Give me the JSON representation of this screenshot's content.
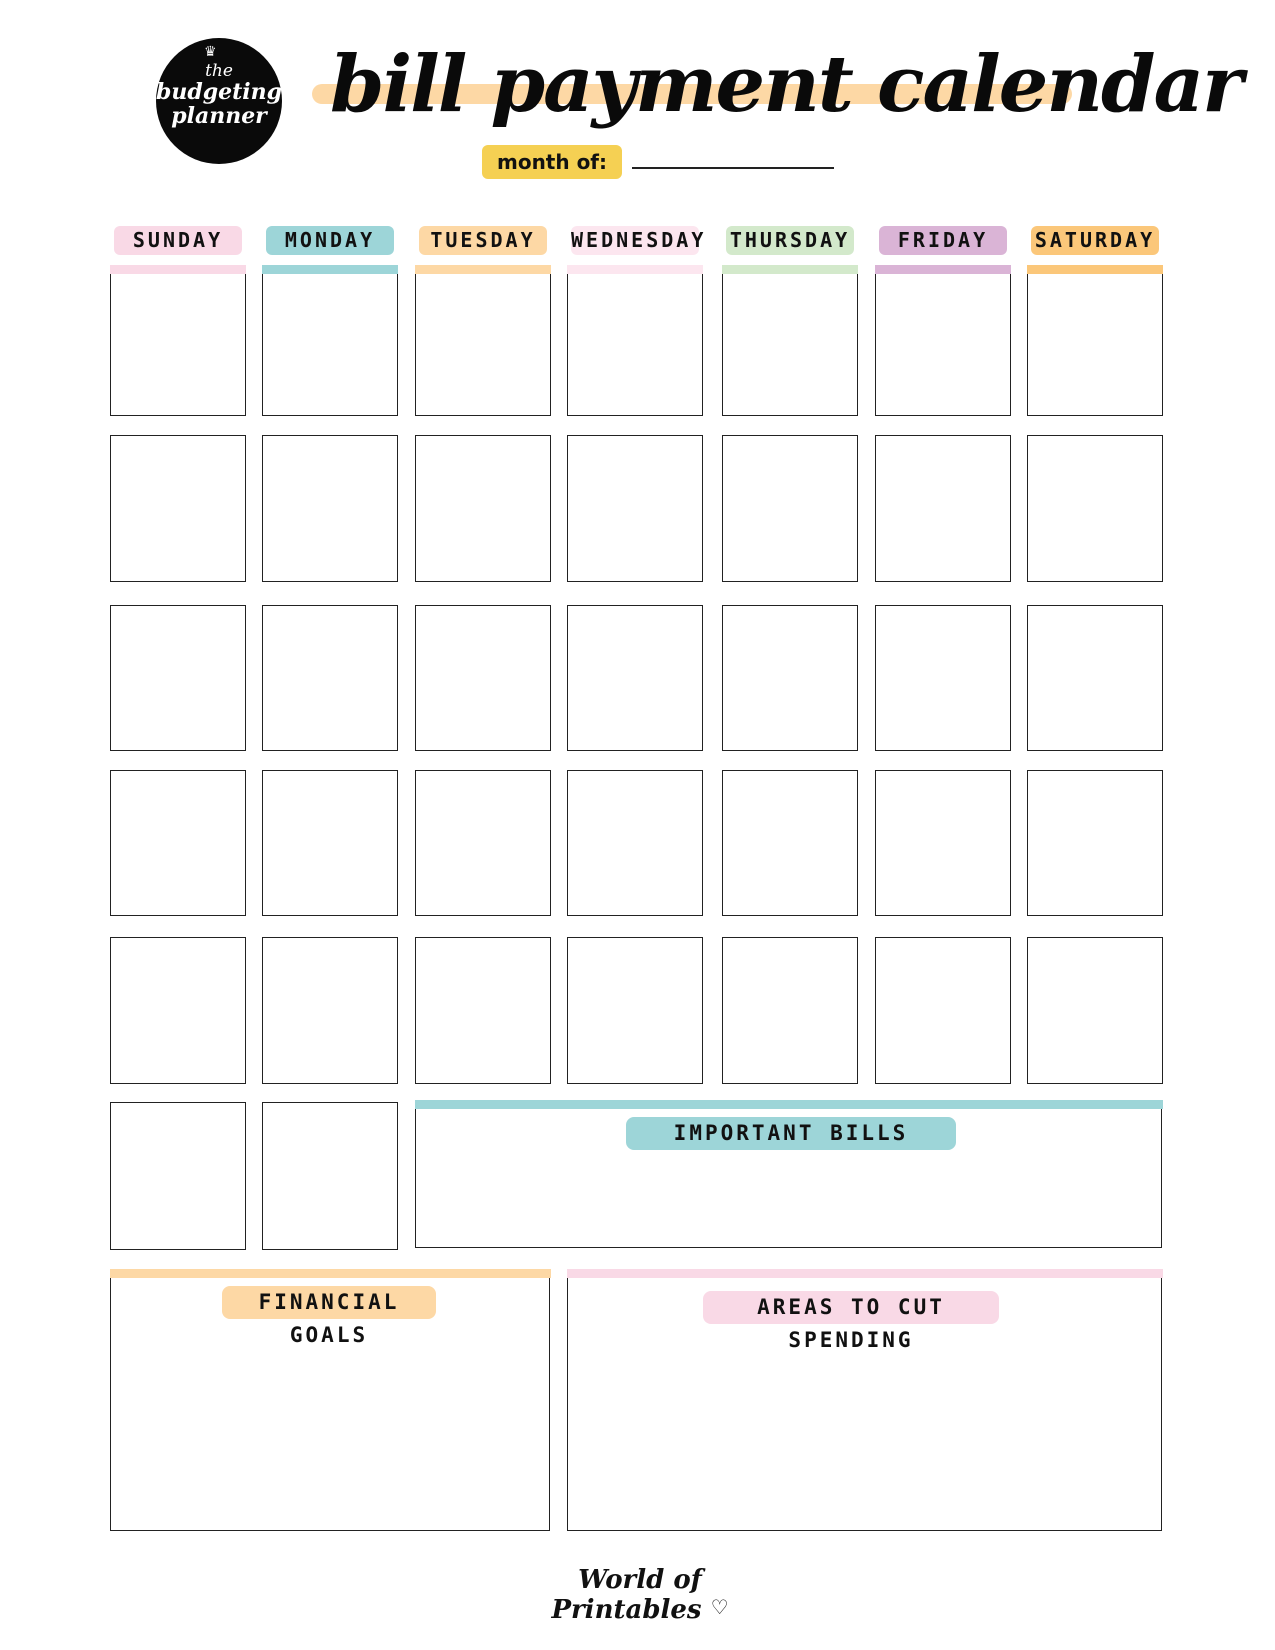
{
  "logo": {
    "line1": "the",
    "line2": "budgeting",
    "line3": "planner"
  },
  "title": "bill payment calendar",
  "month_label": "month of:",
  "days": [
    {
      "label": "SUNDAY",
      "color": "#f9d9e6",
      "bar": "#f9d9e6"
    },
    {
      "label": "MONDAY",
      "color": "#9dd5d8",
      "bar": "#9dd5d8"
    },
    {
      "label": "TUESDAY",
      "color": "#fdd8a5",
      "bar": "#fdd8a5"
    },
    {
      "label": "WEDNESDAY",
      "color": "#fce6ef",
      "bar": "#fce6ef"
    },
    {
      "label": "THURSDAY",
      "color": "#d3e9cb",
      "bar": "#d3e9cb"
    },
    {
      "label": "FRIDAY",
      "color": "#dab4d6",
      "bar": "#dab4d6"
    },
    {
      "label": "SATURDAY",
      "color": "#fbc77a",
      "bar": "#fbc77a"
    }
  ],
  "sections": {
    "important_bills": {
      "label": "IMPORTANT BILLS",
      "color": "#9dd5d8"
    },
    "financial_goals": {
      "label": "FINANCIAL GOALS",
      "color": "#fdd8a5"
    },
    "cut_spending": {
      "label": "AREAS TO CUT SPENDING",
      "color": "#f9d9e6"
    }
  },
  "footer": "World of Printables"
}
